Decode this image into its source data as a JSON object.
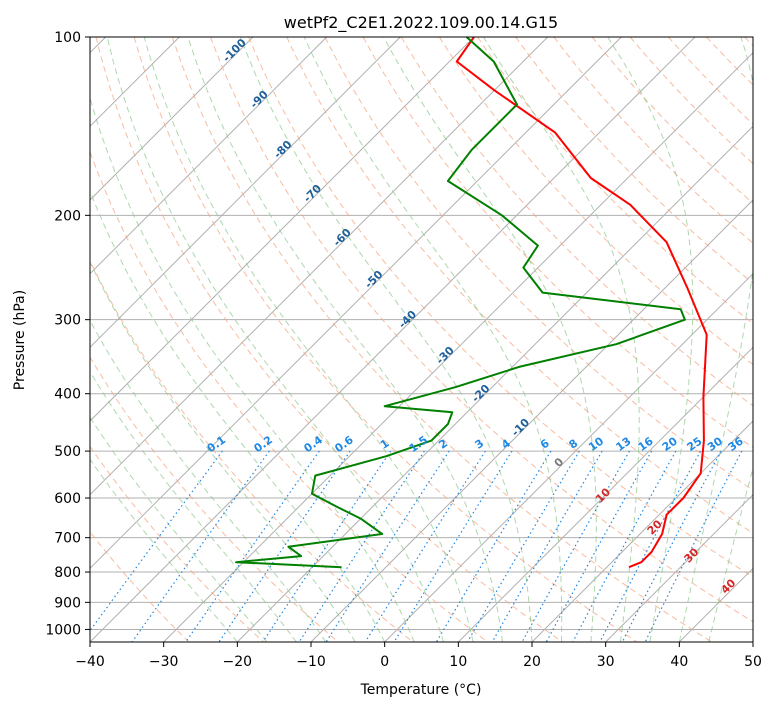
{
  "chart_data": {
    "type": "line",
    "title": "wetPf2_C2E1.2022.109.00.14.G15",
    "xlabel": "Temperature (°C)",
    "ylabel": "Pressure (hPa)",
    "xlim": [
      -40,
      50
    ],
    "ylim": [
      1050,
      100
    ],
    "y_scale": "log",
    "grid": true,
    "x_ticks": [
      "−40",
      "−30",
      "−20",
      "−10",
      "0",
      "10",
      "20",
      "30",
      "40",
      "50"
    ],
    "y_ticks": [
      "100",
      "200",
      "300",
      "400",
      "500",
      "600",
      "700",
      "800",
      "900",
      "1000"
    ],
    "series": [
      {
        "color": "#ff0000",
        "points": [
          {
            "t": 23.0,
            "p": 785
          },
          {
            "t": 24.0,
            "p": 770
          },
          {
            "t": 24.0,
            "p": 740
          },
          {
            "t": 23.0,
            "p": 690
          },
          {
            "t": 21.0,
            "p": 640
          },
          {
            "t": 21.0,
            "p": 600
          },
          {
            "t": 20.0,
            "p": 545
          },
          {
            "t": 16.0,
            "p": 480
          },
          {
            "t": 10.0,
            "p": 405
          },
          {
            "t": 2.0,
            "p": 318
          },
          {
            "t": -7.0,
            "p": 265
          },
          {
            "t": -16.0,
            "p": 222
          },
          {
            "t": -26.0,
            "p": 192
          },
          {
            "t": -35.0,
            "p": 173
          },
          {
            "t": -46.0,
            "p": 145
          },
          {
            "t": -60.0,
            "p": 123
          },
          {
            "t": -69.0,
            "p": 110
          },
          {
            "t": -70.0,
            "p": 100
          }
        ]
      },
      {
        "color": "#008000",
        "points": [
          {
            "t": -16.0,
            "p": 785
          },
          {
            "t": -31.0,
            "p": 770
          },
          {
            "t": -23.0,
            "p": 752
          },
          {
            "t": -26.0,
            "p": 725
          },
          {
            "t": -15.0,
            "p": 690
          },
          {
            "t": -20.0,
            "p": 650
          },
          {
            "t": -25.0,
            "p": 620
          },
          {
            "t": -30.0,
            "p": 590
          },
          {
            "t": -32.0,
            "p": 550
          },
          {
            "t": -25.0,
            "p": 510
          },
          {
            "t": -21.0,
            "p": 480
          },
          {
            "t": -21.0,
            "p": 450
          },
          {
            "t": -22.0,
            "p": 430
          },
          {
            "t": -32.0,
            "p": 420
          },
          {
            "t": -25.0,
            "p": 390
          },
          {
            "t": -19.0,
            "p": 360
          },
          {
            "t": -9.0,
            "p": 330
          },
          {
            "t": -3.0,
            "p": 300
          },
          {
            "t": -5.0,
            "p": 288
          },
          {
            "t": -26.0,
            "p": 270
          },
          {
            "t": -32.0,
            "p": 245
          },
          {
            "t": -33.0,
            "p": 225
          },
          {
            "t": -42.0,
            "p": 200
          },
          {
            "t": -54.0,
            "p": 175
          },
          {
            "t": -55.0,
            "p": 155
          },
          {
            "t": -55.0,
            "p": 130
          },
          {
            "t": -64.0,
            "p": 110
          },
          {
            "t": -71.0,
            "p": 100
          }
        ]
      }
    ],
    "mixing_ratio_labels": [
      "0.1",
      "0.2",
      "0.4",
      "0.6",
      "1",
      "1.5",
      "2",
      "3",
      "4",
      "6",
      "8",
      "10",
      "13",
      "16",
      "20",
      "25",
      "30",
      "36"
    ],
    "mixing_ratio_values": [
      0.1,
      0.2,
      0.4,
      0.6,
      1,
      1.5,
      2,
      3,
      4,
      6,
      8,
      10,
      13,
      16,
      20,
      25,
      30,
      36
    ],
    "dry_adiabat_labels": [
      "-100",
      "-90",
      "-80",
      "-70",
      "-60",
      "-50",
      "-40",
      "-30",
      "-20",
      "-10"
    ],
    "moist_adiabat_labels": [
      "0",
      "10",
      "20",
      "30",
      "40"
    ],
    "colors": {
      "temperature": "#ff0000",
      "dewpoint": "#008000",
      "isotherm": "#b0b0b0",
      "dry_adiabat": "#f4a582",
      "moist_adiabat": "#8bc68b",
      "mixing_ratio": "#1e88e5",
      "dry_label": "#1f5f9a",
      "moist_label": "#d62728"
    }
  }
}
